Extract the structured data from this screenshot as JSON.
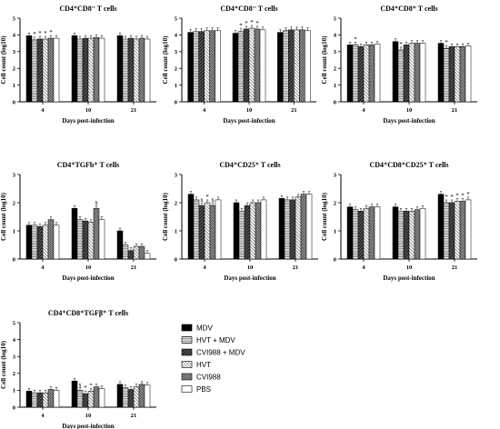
{
  "legend": {
    "items": [
      {
        "label": "MDV",
        "pattern": "solid"
      },
      {
        "label": "HVT + MDV",
        "pattern": "hlines"
      },
      {
        "label": "CVI988 + MDV",
        "pattern": "dark-diag"
      },
      {
        "label": "HVT",
        "pattern": "diag"
      },
      {
        "label": "CVI988",
        "pattern": "cross"
      },
      {
        "label": "PBS",
        "pattern": "white"
      }
    ]
  },
  "chart_data": [
    {
      "type": "bar",
      "title": "CD4⁺CD8⁻ T cells",
      "xlabel": "Days post-infection",
      "ylabel": "Cell count (log10)",
      "ylim": [
        0,
        5
      ],
      "yticks": [
        "0",
        "1",
        "2",
        "3",
        "4",
        "5"
      ],
      "categories": [
        "4",
        "10",
        "21"
      ],
      "series": [
        {
          "name": "MDV",
          "values": [
            3.95,
            3.95,
            3.95
          ]
        },
        {
          "name": "HVT + MDV",
          "values": [
            3.7,
            3.75,
            3.75
          ]
        },
        {
          "name": "CVI988 + MDV",
          "values": [
            3.75,
            3.8,
            3.8
          ]
        },
        {
          "name": "HVT",
          "values": [
            3.75,
            3.8,
            3.75
          ]
        },
        {
          "name": "CVI988",
          "values": [
            3.8,
            3.85,
            3.8
          ]
        },
        {
          "name": "PBS",
          "values": [
            3.8,
            3.8,
            3.75
          ]
        }
      ],
      "annotations": [
        {
          "category": "4",
          "series": "HVT + MDV",
          "text": "*"
        },
        {
          "category": "4",
          "series": "CVI988 + MDV",
          "text": "*"
        },
        {
          "category": "4",
          "series": "HVT",
          "text": "*"
        },
        {
          "category": "4",
          "series": "CVI988",
          "text": "*"
        }
      ]
    },
    {
      "type": "bar",
      "title": "CD4⁺CD8⁻ T cells",
      "xlabel": "Days post-infection",
      "ylabel": "Cell count (log10)",
      "ylim": [
        0,
        5
      ],
      "yticks": [
        "0",
        "1",
        "2",
        "3",
        "4",
        "5"
      ],
      "categories": [
        "4",
        "10",
        "21"
      ],
      "series": [
        {
          "name": "MDV",
          "values": [
            4.15,
            4.1,
            4.15
          ]
        },
        {
          "name": "HVT + MDV",
          "values": [
            4.2,
            4.2,
            4.25
          ]
        },
        {
          "name": "CVI988 + MDV",
          "values": [
            4.2,
            4.35,
            4.3
          ]
        },
        {
          "name": "HVT",
          "values": [
            4.25,
            4.4,
            4.3
          ]
        },
        {
          "name": "CVI988",
          "values": [
            4.25,
            4.35,
            4.3
          ]
        },
        {
          "name": "PBS",
          "values": [
            4.25,
            4.3,
            4.25
          ]
        }
      ],
      "annotations": [
        {
          "category": "10",
          "series": "HVT + MDV",
          "text": "*"
        },
        {
          "category": "10",
          "series": "CVI988 + MDV",
          "text": "*"
        },
        {
          "category": "10",
          "series": "HVT",
          "text": "*"
        },
        {
          "category": "10",
          "series": "CVI988",
          "text": "*"
        }
      ]
    },
    {
      "type": "bar",
      "title": "CD4⁺CD8⁺ T cells",
      "xlabel": "Days post-infection",
      "ylabel": "Cell count (log10)",
      "ylim": [
        0,
        5
      ],
      "yticks": [
        "0",
        "1",
        "2",
        "3",
        "4",
        "5"
      ],
      "categories": [
        "4",
        "10",
        "21"
      ],
      "series": [
        {
          "name": "MDV",
          "values": [
            3.4,
            3.6,
            3.5
          ]
        },
        {
          "name": "HVT + MDV",
          "values": [
            3.4,
            3.1,
            3.2
          ]
        },
        {
          "name": "CVI988 + MDV",
          "values": [
            3.3,
            3.4,
            3.3
          ]
        },
        {
          "name": "HVT",
          "values": [
            3.4,
            3.5,
            3.3
          ]
        },
        {
          "name": "CVI988",
          "values": [
            3.4,
            3.5,
            3.3
          ]
        },
        {
          "name": "PBS",
          "values": [
            3.45,
            3.5,
            3.35
          ]
        }
      ],
      "annotations": [
        {
          "category": "4",
          "series": "HVT + MDV",
          "text": "*"
        },
        {
          "category": "10",
          "series": "HVT + MDV",
          "text": "*"
        },
        {
          "category": "21",
          "series": "HVT + MDV",
          "text": "*"
        }
      ]
    },
    {
      "type": "bar",
      "title": "CD4⁺TGFb⁺ T cells",
      "xlabel": "Days post-infection",
      "ylabel": "Cell count (log10)",
      "ylim": [
        0,
        3
      ],
      "yticks": [
        "0",
        "1",
        "2",
        "3"
      ],
      "categories": [
        "4",
        "10",
        "21"
      ],
      "series": [
        {
          "name": "MDV",
          "values": [
            1.2,
            1.8,
            1.0
          ]
        },
        {
          "name": "HVT + MDV",
          "values": [
            1.2,
            1.4,
            0.5
          ]
        },
        {
          "name": "CVI988 + MDV",
          "values": [
            1.15,
            1.35,
            0.3
          ]
        },
        {
          "name": "HVT",
          "values": [
            1.2,
            1.3,
            0.45
          ]
        },
        {
          "name": "CVI988",
          "values": [
            1.4,
            1.8,
            0.45
          ]
        },
        {
          "name": "PBS",
          "values": [
            1.2,
            1.4,
            0.2
          ]
        }
      ],
      "annotations": [
        {
          "category": "10",
          "series": "CVI988",
          "text": "x"
        }
      ]
    },
    {
      "type": "bar",
      "title": "CD4⁺CD25⁺ T cells",
      "xlabel": "Days post-infection",
      "ylabel": "Cell count (log10)",
      "ylim": [
        0,
        3
      ],
      "yticks": [
        "0",
        "1",
        "2",
        "3"
      ],
      "categories": [
        "4",
        "10",
        "21"
      ],
      "series": [
        {
          "name": "MDV",
          "values": [
            2.3,
            2.0,
            2.15
          ]
        },
        {
          "name": "HVT + MDV",
          "values": [
            2.1,
            1.7,
            2.1
          ]
        },
        {
          "name": "CVI988 + MDV",
          "values": [
            1.9,
            1.9,
            2.1
          ]
        },
        {
          "name": "HVT",
          "values": [
            2.0,
            2.0,
            2.2
          ]
        },
        {
          "name": "CVI988",
          "values": [
            1.9,
            2.0,
            2.3
          ]
        },
        {
          "name": "PBS",
          "values": [
            2.1,
            2.1,
            2.3
          ]
        }
      ],
      "annotations": [
        {
          "category": "4",
          "series": "CVI988 + MDV",
          "text": "x"
        },
        {
          "category": "4",
          "series": "CVI988",
          "text": "x"
        },
        {
          "category": "4",
          "series": "HVT",
          "text": "*"
        }
      ]
    },
    {
      "type": "bar",
      "title": "CD4⁺CD8⁺CD25⁺ T cells",
      "xlabel": "Days post-infection",
      "ylabel": "Cell count (log10)",
      "ylim": [
        0,
        3
      ],
      "yticks": [
        "0",
        "1",
        "2",
        "3"
      ],
      "categories": [
        "4",
        "10",
        "21"
      ],
      "series": [
        {
          "name": "MDV",
          "values": [
            1.85,
            1.85,
            2.3
          ]
        },
        {
          "name": "HVT + MDV",
          "values": [
            1.75,
            1.7,
            2.0
          ]
        },
        {
          "name": "CVI988 + MDV",
          "values": [
            1.7,
            1.7,
            2.0
          ]
        },
        {
          "name": "HVT",
          "values": [
            1.8,
            1.7,
            2.05
          ]
        },
        {
          "name": "CVI988",
          "values": [
            1.85,
            1.75,
            2.05
          ]
        },
        {
          "name": "PBS",
          "values": [
            1.85,
            1.8,
            2.1
          ]
        }
      ],
      "annotations": [
        {
          "category": "21",
          "series": "HVT + MDV",
          "text": "*"
        },
        {
          "category": "21",
          "series": "CVI988 + MDV",
          "text": "*"
        },
        {
          "category": "21",
          "series": "HVT",
          "text": "*"
        },
        {
          "category": "21",
          "series": "CVI988",
          "text": "*"
        },
        {
          "category": "21",
          "series": "PBS",
          "text": "*"
        }
      ]
    },
    {
      "type": "bar",
      "title": "CD4⁺CD8⁺TGFβ⁺ T cells",
      "xlabel": "Days post-infection",
      "ylabel": "Cell count (log10)",
      "ylim": [
        0,
        5
      ],
      "yticks": [
        "0",
        "1",
        "2",
        "3",
        "4",
        "5"
      ],
      "categories": [
        "4",
        "10",
        "21"
      ],
      "series": [
        {
          "name": "MDV",
          "values": [
            0.95,
            1.55,
            1.35
          ]
        },
        {
          "name": "HVT + MDV",
          "values": [
            0.85,
            1.0,
            1.15
          ]
        },
        {
          "name": "CVI988 + MDV",
          "values": [
            0.85,
            0.8,
            1.05
          ]
        },
        {
          "name": "HVT",
          "values": [
            0.85,
            0.95,
            1.2
          ]
        },
        {
          "name": "CVI988",
          "values": [
            1.05,
            1.2,
            1.35
          ]
        },
        {
          "name": "PBS",
          "values": [
            1.0,
            1.1,
            1.3
          ]
        }
      ],
      "annotations": [
        {
          "category": "10",
          "series": "HVT + MDV",
          "text": "x"
        },
        {
          "category": "10",
          "series": "CVI988 + MDV",
          "text": "*"
        },
        {
          "category": "10",
          "series": "HVT",
          "text": "*"
        }
      ]
    }
  ]
}
